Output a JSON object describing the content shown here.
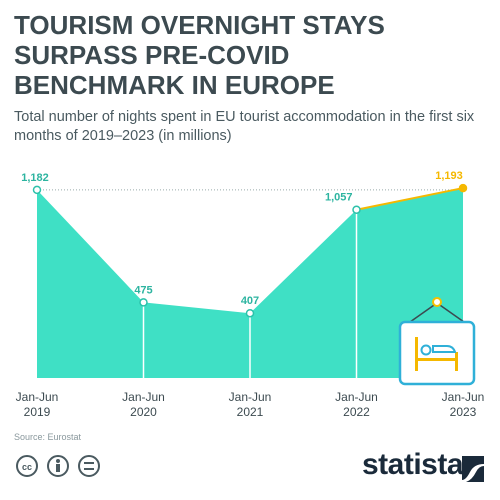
{
  "chart_data": {
    "type": "area",
    "title": "TOURISM OVERNIGHT STAYS SURPASS PRE-COVID BENCHMARK IN EUROPE",
    "subtitle": "Total number of nights spent in EU tourist accommodation in the first six months of 2019–2023 (in millions)",
    "categories": [
      "Jan-Jun 2019",
      "Jan-Jun 2020",
      "Jan-Jun 2021",
      "Jan-Jun 2022",
      "Jan-Jun 2023"
    ],
    "values": [
      1182,
      475,
      407,
      1057,
      1193
    ],
    "value_labels": [
      "1,182",
      "475",
      "407",
      "1,057",
      "1,193"
    ],
    "color": "#3fe0c5",
    "highlight_color": "#f5b800",
    "ylim": [
      0,
      1250
    ]
  },
  "footer": {
    "source": "Source: Eurostat",
    "brand": "statista"
  }
}
